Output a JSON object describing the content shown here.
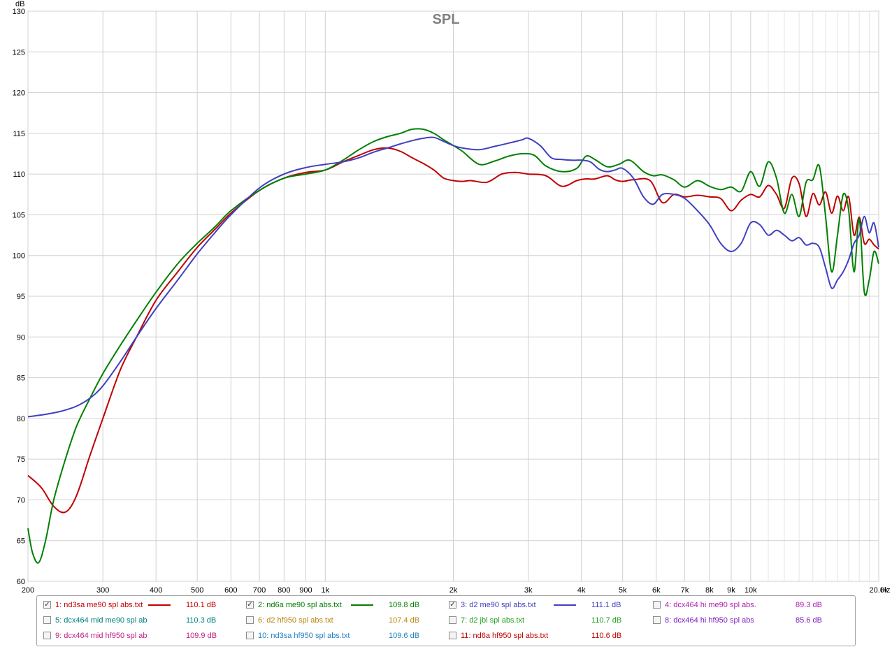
{
  "chart_data": {
    "type": "line",
    "title": "SPL",
    "ylabel": "dB",
    "xunit": "Hz",
    "xscale": "log",
    "xlim": [
      200,
      20000
    ],
    "ylim": [
      60,
      130
    ],
    "yticks": [
      "60",
      "65",
      "70",
      "75",
      "80",
      "85",
      "90",
      "95",
      "100",
      "105",
      "110",
      "115",
      "120",
      "125",
      "130"
    ],
    "xticks": [
      {
        "v": 200,
        "label": "200"
      },
      {
        "v": 300,
        "label": "300"
      },
      {
        "v": 400,
        "label": "400"
      },
      {
        "v": 500,
        "label": "500"
      },
      {
        "v": 600,
        "label": "600"
      },
      {
        "v": 700,
        "label": "700"
      },
      {
        "v": 800,
        "label": "800"
      },
      {
        "v": 900,
        "label": "900"
      },
      {
        "v": 1000,
        "label": "1k"
      },
      {
        "v": 2000,
        "label": "2k"
      },
      {
        "v": 3000,
        "label": "3k"
      },
      {
        "v": 4000,
        "label": "4k"
      },
      {
        "v": 5000,
        "label": "5k"
      },
      {
        "v": 6000,
        "label": "6k"
      },
      {
        "v": 7000,
        "label": "7k"
      },
      {
        "v": 8000,
        "label": "8k"
      },
      {
        "v": 9000,
        "label": "9k"
      },
      {
        "v": 10000,
        "label": "10k"
      },
      {
        "v": 20000,
        "label": "20.0k"
      }
    ],
    "grid": true,
    "series": [
      {
        "name": "1: nd3sa me90 spl abs.txt",
        "color": "#c00000",
        "x": [
          200,
          215,
          230,
          245,
          260,
          280,
          300,
          330,
          360,
          400,
          450,
          500,
          550,
          600,
          700,
          800,
          900,
          1000,
          1100,
          1200,
          1300,
          1400,
          1500,
          1600,
          1700,
          1800,
          1900,
          2000,
          2100,
          2200,
          2400,
          2600,
          2800,
          3000,
          3300,
          3600,
          3900,
          4100,
          4300,
          4600,
          4800,
          5000,
          5300,
          5800,
          6200,
          6600,
          7000,
          7500,
          8000,
          8500,
          9000,
          9500,
          10000,
          10500,
          11000,
          11500,
          12000,
          12500,
          13000,
          13500,
          14000,
          14500,
          15000,
          15500,
          16000,
          16500,
          17000,
          17500,
          18000,
          18500,
          19000,
          19500,
          20000
        ],
        "y": [
          73,
          71.5,
          69.2,
          68.5,
          70.5,
          75.5,
          80,
          86,
          90,
          94.5,
          98,
          101,
          103.2,
          105.2,
          108,
          109.5,
          110.2,
          110.5,
          111.5,
          112.3,
          113,
          113.2,
          112.8,
          112,
          111.3,
          110.5,
          109.5,
          109.2,
          109.1,
          109.2,
          109,
          110,
          110.2,
          110,
          109.8,
          108.5,
          109.2,
          109.4,
          109.4,
          109.8,
          109.3,
          109.1,
          109.3,
          109.2,
          106.5,
          107.5,
          107.2,
          107.4,
          107.2,
          107,
          105.5,
          106.8,
          107.5,
          107.2,
          108.6,
          107.5,
          105.8,
          109.5,
          108.8,
          104.8,
          107.6,
          106.2,
          107.8,
          105.2,
          107.3,
          105.5,
          107.2,
          102.5,
          104.7,
          101.5,
          102,
          101.3,
          100.8
        ]
      },
      {
        "name": "2: nd6a me90 spl abs.txt",
        "color": "#008000",
        "x": [
          200,
          205,
          212,
          220,
          230,
          245,
          260,
          280,
          300,
          330,
          360,
          400,
          450,
          500,
          550,
          600,
          700,
          800,
          900,
          1000,
          1100,
          1200,
          1300,
          1400,
          1500,
          1600,
          1700,
          1800,
          1900,
          2000,
          2100,
          2300,
          2500,
          2700,
          2900,
          3100,
          3300,
          3600,
          3900,
          4100,
          4300,
          4600,
          4900,
          5200,
          5600,
          5900,
          6200,
          6600,
          7000,
          7500,
          8000,
          8500,
          9000,
          9500,
          10000,
          10500,
          11000,
          11500,
          12000,
          12500,
          13000,
          13500,
          14000,
          14500,
          15000,
          15500,
          16000,
          16500,
          17000,
          17500,
          18000,
          18500,
          19000,
          19500,
          20000
        ],
        "y": [
          66.5,
          63.5,
          62.3,
          65,
          70,
          75,
          79,
          82.5,
          85.5,
          89,
          92,
          95.5,
          99,
          101.5,
          103.5,
          105.5,
          108,
          109.5,
          110,
          110.5,
          111.7,
          113,
          114,
          114.6,
          115,
          115.5,
          115.5,
          115,
          114.2,
          113.5,
          112.8,
          111.2,
          111.6,
          112.2,
          112.5,
          112.3,
          111,
          110.3,
          110.7,
          112.2,
          111.8,
          110.9,
          111.2,
          111.7,
          110.3,
          109.8,
          109.9,
          109.3,
          108.4,
          109.2,
          108.5,
          108.1,
          108.4,
          107.9,
          110.3,
          108.5,
          111.5,
          109.5,
          105.2,
          107.5,
          104.8,
          109,
          109.3,
          111,
          104.8,
          98,
          102.5,
          107.5,
          105.5,
          98,
          104.5,
          95.5,
          97,
          100.5,
          99
        ]
      },
      {
        "name": "3: d2 me90 spl abs.txt",
        "color": "#4040c0",
        "x": [
          200,
          220,
          240,
          260,
          280,
          300,
          330,
          360,
          400,
          450,
          500,
          550,
          600,
          700,
          800,
          900,
          1000,
          1100,
          1200,
          1300,
          1400,
          1500,
          1600,
          1700,
          1800,
          1900,
          2000,
          2100,
          2300,
          2500,
          2700,
          2900,
          3000,
          3200,
          3400,
          3600,
          3800,
          4000,
          4200,
          4400,
          4600,
          4800,
          5000,
          5300,
          5600,
          5900,
          6200,
          6600,
          7000,
          7500,
          8000,
          8500,
          9000,
          9500,
          10000,
          10500,
          11000,
          11500,
          12000,
          12500,
          13000,
          13500,
          14000,
          14500,
          15000,
          15500,
          16000,
          16500,
          17000,
          17500,
          18000,
          18500,
          19000,
          19500,
          20000
        ],
        "y": [
          80.2,
          80.5,
          80.9,
          81.5,
          82.5,
          84,
          87,
          90,
          93.5,
          97,
          100.2,
          102.8,
          105,
          108.3,
          110,
          110.8,
          111.2,
          111.5,
          112,
          112.7,
          113.2,
          113.7,
          114.1,
          114.4,
          114.5,
          114,
          113.5,
          113.2,
          113,
          113.4,
          113.8,
          114.2,
          114.4,
          113.5,
          112,
          111.8,
          111.7,
          111.7,
          111.5,
          110.6,
          110.3,
          110.5,
          110.7,
          109.5,
          107.2,
          106.3,
          107.5,
          107.5,
          107,
          105.5,
          103.8,
          101.5,
          100.5,
          101.5,
          104,
          103.8,
          102.5,
          103.1,
          102.5,
          101.8,
          102.2,
          101.3,
          101.5,
          101,
          98.5,
          96,
          97,
          98,
          99.5,
          101.5,
          102.5,
          104.8,
          102.8,
          104,
          101
        ]
      }
    ]
  },
  "legend": [
    {
      "checked": true,
      "label": "1: nd3sa me90 spl abs.txt",
      "value": "110.1 dB",
      "color": "#c00000",
      "show_swatch": true
    },
    {
      "checked": true,
      "label": "2: nd6a me90 spl abs.txt",
      "value": "109.8 dB",
      "color": "#008000",
      "show_swatch": true
    },
    {
      "checked": true,
      "label": "3: d2 me90 spl abs.txt",
      "value": "111.1 dB",
      "color": "#4040c0",
      "show_swatch": true
    },
    {
      "checked": false,
      "label": "4: dcx464 hi me90 spl abs.",
      "value": "89.3 dB",
      "color": "#b020b0",
      "show_swatch": false
    },
    {
      "checked": false,
      "label": "5: dcx464 mid me90 spl ab",
      "value": "110.3 dB",
      "color": "#008080",
      "show_swatch": false
    },
    {
      "checked": false,
      "label": "6: d2 hf950 spl abs.txt",
      "value": "107.4 dB",
      "color": "#b8860b",
      "show_swatch": false
    },
    {
      "checked": false,
      "label": "7: d2 jbl spl abs.txt",
      "value": "110.7 dB",
      "color": "#20a020",
      "show_swatch": false
    },
    {
      "checked": false,
      "label": "8: dcx464 hi hf950 spl abs",
      "value": "85.6 dB",
      "color": "#8020c0",
      "show_swatch": false
    },
    {
      "checked": false,
      "label": "9: dcx464 mid hf950 spl ab",
      "value": "109.9 dB",
      "color": "#c02080",
      "show_swatch": false
    },
    {
      "checked": false,
      "label": "10: nd3sa hf950 spl abs.txt",
      "value": "109.6 dB",
      "color": "#2080c0",
      "show_swatch": false
    },
    {
      "checked": false,
      "label": "11: nd6a hf950 spl abs.txt",
      "value": "110.6 dB",
      "color": "#c00000",
      "show_swatch": false
    }
  ]
}
